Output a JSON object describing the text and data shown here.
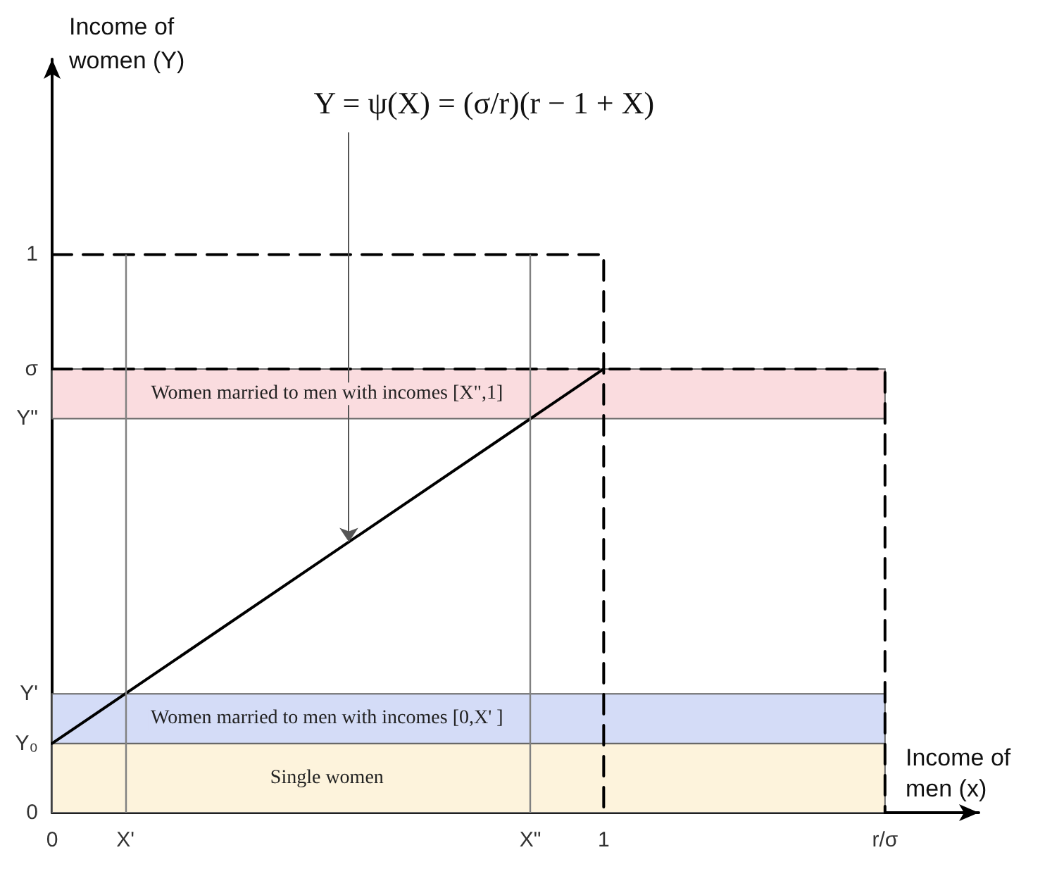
{
  "chart_data": {
    "type": "line",
    "xlabel": "Income of men (x)",
    "ylabel": "Income of women (Y)",
    "xlim": [
      0,
      1.68
    ],
    "ylim": [
      0,
      1.35
    ],
    "xticks": [
      0,
      {
        "value": 0.133,
        "label": "X'"
      },
      {
        "value": 0.867,
        "label": "X\""
      },
      1,
      {
        "value": 1.51,
        "label": "r/σ"
      }
    ],
    "yticks": [
      0,
      {
        "value": 0.124,
        "label": "Y₀"
      },
      {
        "value": 0.213,
        "label": "Y'"
      },
      {
        "value": 0.706,
        "label": "Y\""
      },
      {
        "value": 0.795,
        "label": "σ"
      },
      1
    ],
    "series": [
      {
        "color": "#000000",
        "line_style": "solid",
        "x": [
          0,
          1
        ],
        "values": [
          0.124,
          0.795
        ]
      },
      {
        "color": "#000000",
        "line_style": "dashed",
        "x": [
          0,
          1,
          1
        ],
        "values": [
          1,
          1,
          0
        ]
      },
      {
        "color": "#000000",
        "line_style": "dashed",
        "x": [
          0,
          1.51,
          1.51
        ],
        "values": [
          0.795,
          0.795,
          0
        ]
      }
    ],
    "ref_lines": [
      {
        "axis": "x",
        "value": 0.133,
        "color": "#808080",
        "line_style": "solid"
      },
      {
        "axis": "x",
        "value": 0.867,
        "color": "#808080",
        "line_style": "solid"
      }
    ],
    "bands": [
      {
        "axis": "y",
        "from": 0,
        "to": 0.124,
        "label": "Single women",
        "color": "#fdf3dc"
      },
      {
        "axis": "y",
        "from": 0.124,
        "to": 0.213,
        "label": "Women married to men with incomes [0,X' ]",
        "color": "#d4dcf7"
      },
      {
        "axis": "y",
        "from": 0.706,
        "to": 0.795,
        "label": "Women married to men with incomes [X\",1]",
        "color": "#fadcdf"
      }
    ],
    "annotations": [
      {
        "text": "Y = ψ(X) = (σ/r)(r − 1 + X)",
        "x": 0.538,
        "y": 0.485
      }
    ],
    "marker": "none",
    "grid": false
  }
}
